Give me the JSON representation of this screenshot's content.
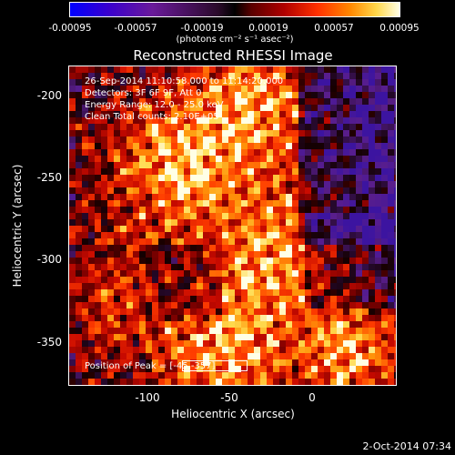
{
  "colorbar": {
    "ticks": [
      "-0.00095",
      "-0.00057",
      "-0.00019",
      "0.00019",
      "0.00057",
      "0.00095"
    ],
    "units": "(photons cm⁻² s⁻¹ asec⁻²)",
    "colors": {
      "low": "#0000ff",
      "mid": "#000000",
      "high": "#ffffe6"
    }
  },
  "title": "Reconstructed RHESSI Image",
  "info": {
    "time_range": "26-Sep-2014 11:10:58.000 to 11:14:20.000",
    "detectors": "Detectors: 3F 6F 9F, Att 0",
    "energy_range": "Energy Range: 12.0 - 25.0 keV",
    "clean_counts": "Clean    Total counts: 2.10E+05",
    "peak_position": "Position of Peak = [-45,-357]"
  },
  "axes": {
    "xlabel": "Heliocentric X (arcsec)",
    "ylabel": "Heliocentric Y (arcsec)",
    "xticks": [
      "-100",
      "-50",
      "0"
    ],
    "yticks": [
      "-200",
      "-250",
      "-300",
      "-350"
    ]
  },
  "date_stamp": "2-Oct-2014 07:34"
}
